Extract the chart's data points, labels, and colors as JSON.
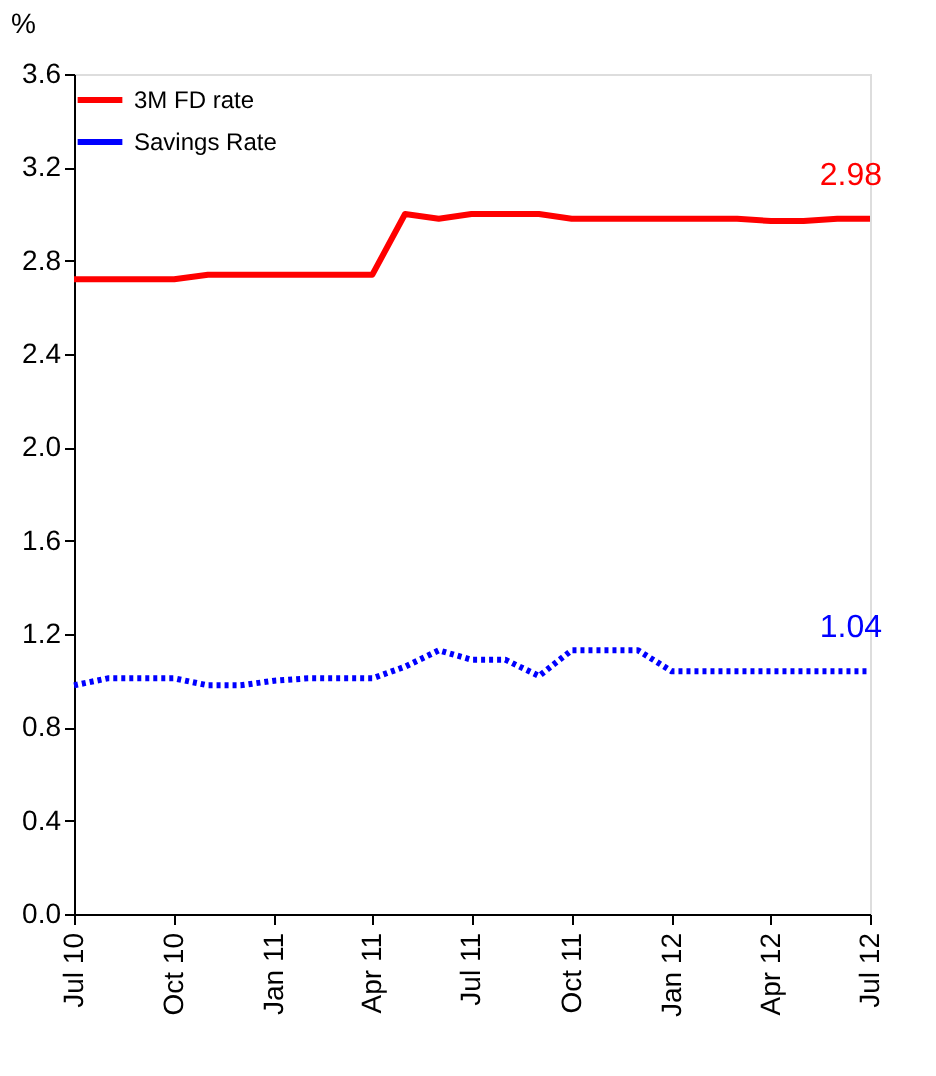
{
  "chart_data": {
    "type": "line",
    "ylabel": "%",
    "x": [
      "2010-07",
      "2010-08",
      "2010-09",
      "2010-10",
      "2010-11",
      "2010-12",
      "2011-01",
      "2011-02",
      "2011-03",
      "2011-04",
      "2011-05",
      "2011-06",
      "2011-07",
      "2011-08",
      "2011-09",
      "2011-10",
      "2011-11",
      "2011-12",
      "2012-01",
      "2012-02",
      "2012-03",
      "2012-04",
      "2012-05",
      "2012-06",
      "2012-07"
    ],
    "series": [
      {
        "name": "3M FD rate",
        "color": "#ff0000",
        "line_style": "solid",
        "values": [
          2.72,
          2.72,
          2.72,
          2.72,
          2.74,
          2.74,
          2.74,
          2.74,
          2.74,
          2.74,
          3.0,
          2.98,
          3.0,
          3.0,
          3.0,
          2.98,
          2.98,
          2.98,
          2.98,
          2.98,
          2.98,
          2.97,
          2.97,
          2.98,
          2.98
        ]
      },
      {
        "name": "Savings Rate",
        "color": "#0000ff",
        "line_style": "dotted",
        "values": [
          0.98,
          1.01,
          1.01,
          1.01,
          0.98,
          0.98,
          1.0,
          1.01,
          1.01,
          1.01,
          1.06,
          1.13,
          1.09,
          1.09,
          1.02,
          1.13,
          1.13,
          1.13,
          1.04,
          1.04,
          1.04,
          1.04,
          1.04,
          1.04,
          1.04
        ]
      }
    ],
    "ylim": [
      0,
      3.6
    ],
    "yticks": [
      {
        "value": 0,
        "label": "0.0"
      },
      0.4,
      0.8,
      1.2,
      1.6,
      {
        "value": 2,
        "label": "2.0"
      },
      2.4,
      2.8,
      3.2,
      3.6
    ],
    "xlim": [
      "2010-07",
      "2012-07"
    ],
    "xticks": [
      {
        "value": "2010-07",
        "label": "Jul 10"
      },
      {
        "value": "2010-10",
        "label": "Oct 10"
      },
      {
        "value": "2011-01",
        "label": "Jan 11"
      },
      {
        "value": "2011-04",
        "label": "Apr 11"
      },
      {
        "value": "2011-07",
        "label": "Jul 11"
      },
      {
        "value": "2011-10",
        "label": "Oct 11"
      },
      {
        "value": "2012-01",
        "label": "Jan 12"
      },
      {
        "value": "2012-04",
        "label": "Apr 12"
      },
      {
        "value": "2012-07",
        "label": "Jul 12"
      }
    ],
    "annotations": [
      {
        "text": "2.98",
        "x": "2012-07",
        "y": 2.98
      },
      {
        "text": "1.04",
        "x": "2012-07",
        "y": 1.04
      }
    ],
    "grid": false,
    "legend": "top left"
  }
}
